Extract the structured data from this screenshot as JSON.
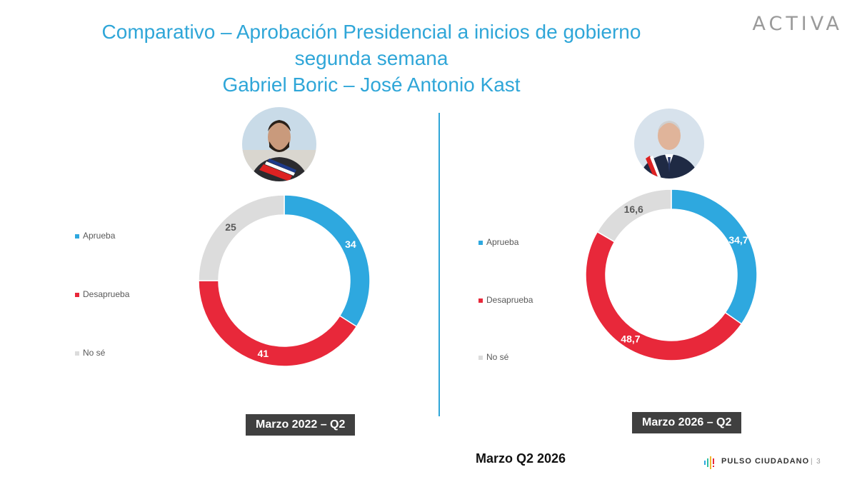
{
  "title_lines": [
    "Comparativo – Aprobación Presidencial a inicios de gobierno",
    "segunda semana",
    "Gabriel Boric – José Antonio Kast"
  ],
  "logo": "ACTIVA",
  "colors": {
    "Aprueba": "#2ea8df",
    "Desaprueba": "#e8283a",
    "No sé": "#dcdcdc",
    "title": "#2fa6d8"
  },
  "chart_data": [
    {
      "type": "pie",
      "subtype": "donut",
      "label": "Marzo 2022 – Q2",
      "person": "Gabriel Boric",
      "categories": [
        "Aprueba",
        "Desaprueba",
        "No sé"
      ],
      "values": [
        34,
        41,
        25
      ],
      "value_labels": [
        "34",
        "41",
        "25"
      ],
      "legend": "left"
    },
    {
      "type": "pie",
      "subtype": "donut",
      "label": "Marzo 2026 – Q2",
      "person": "José Antonio Kast",
      "categories": [
        "Aprueba",
        "Desaprueba",
        "No sé"
      ],
      "values": [
        34.7,
        48.7,
        16.6
      ],
      "value_labels": [
        "34,7",
        "48,7",
        "16,6"
      ],
      "legend": "left"
    }
  ],
  "footer": {
    "text": "Marzo Q2  2026",
    "brand": "PULSO CIUDADANO",
    "page": "3"
  }
}
